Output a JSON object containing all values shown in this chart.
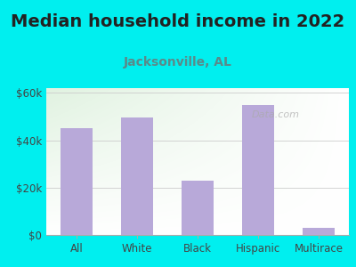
{
  "title": "Median household income in 2022",
  "subtitle": "Jacksonville, AL",
  "categories": [
    "All",
    "White",
    "Black",
    "Hispanic",
    "Multirace"
  ],
  "values": [
    45000,
    49500,
    23000,
    55000,
    3000
  ],
  "bar_color": "#b8a9d9",
  "background_outer": "#00efef",
  "ylim": [
    0,
    62000
  ],
  "yticks": [
    0,
    20000,
    40000,
    60000
  ],
  "ytick_labels": [
    "$0",
    "$20k",
    "$40k",
    "$60k"
  ],
  "title_fontsize": 14,
  "title_color": "#222222",
  "subtitle_fontsize": 10,
  "subtitle_color": "#5a8a8a",
  "tick_fontsize": 8.5,
  "tick_color": "#444444",
  "watermark": "Data.com",
  "grid_color": "#cccccc"
}
